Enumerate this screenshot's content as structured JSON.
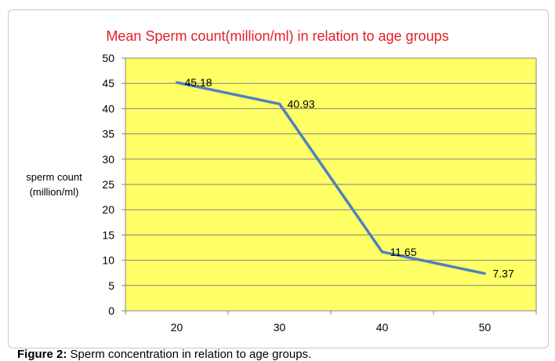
{
  "chart_data": {
    "type": "line",
    "title": "Mean Sperm count(million/ml) in relation to age groups",
    "ylabel_lines": [
      "sperm count",
      "(million/ml)"
    ],
    "xlabel": "",
    "x": [
      20,
      30,
      40,
      50
    ],
    "series": [
      {
        "values": [
          45.18,
          40.93,
          11.65,
          7.37
        ],
        "labels": [
          "45.18",
          "40.93",
          "11.65",
          "7.37"
        ]
      }
    ],
    "ylim": [
      0,
      50
    ],
    "yticks": [
      0,
      5,
      10,
      15,
      20,
      25,
      30,
      35,
      40,
      45,
      50
    ],
    "grid": true,
    "legend": "none",
    "colors": {
      "plot_background": "#ffff66",
      "line": "#4f81bd",
      "gridline": "#808080",
      "title": "#e31e24"
    }
  },
  "caption": {
    "label": "Figure 2:",
    "text": "Sperm concentration in relation to age groups."
  }
}
